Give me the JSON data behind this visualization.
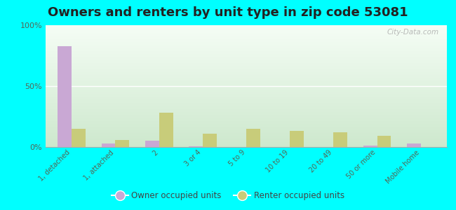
{
  "title": "Owners and renters by unit type in zip code 53081",
  "categories": [
    "1, detached",
    "1, attached",
    "2",
    "3 or 4",
    "5 to 9",
    "10 to 19",
    "20 to 49",
    "50 or more",
    "Mobile home"
  ],
  "owner_values": [
    83,
    3,
    5,
    0.5,
    0,
    0,
    0,
    1,
    3
  ],
  "renter_values": [
    15,
    6,
    28,
    11,
    15,
    13,
    12,
    9,
    0
  ],
  "owner_color": "#c9a8d4",
  "renter_color": "#c8cc7a",
  "background_color": "#00ffff",
  "grad_top": "#cde8cd",
  "grad_bottom": "#f5fdf5",
  "title_fontsize": 13,
  "yticks": [
    0,
    50,
    100
  ],
  "ytick_labels": [
    "0%",
    "50%",
    "100%"
  ],
  "watermark": "City-Data.com"
}
